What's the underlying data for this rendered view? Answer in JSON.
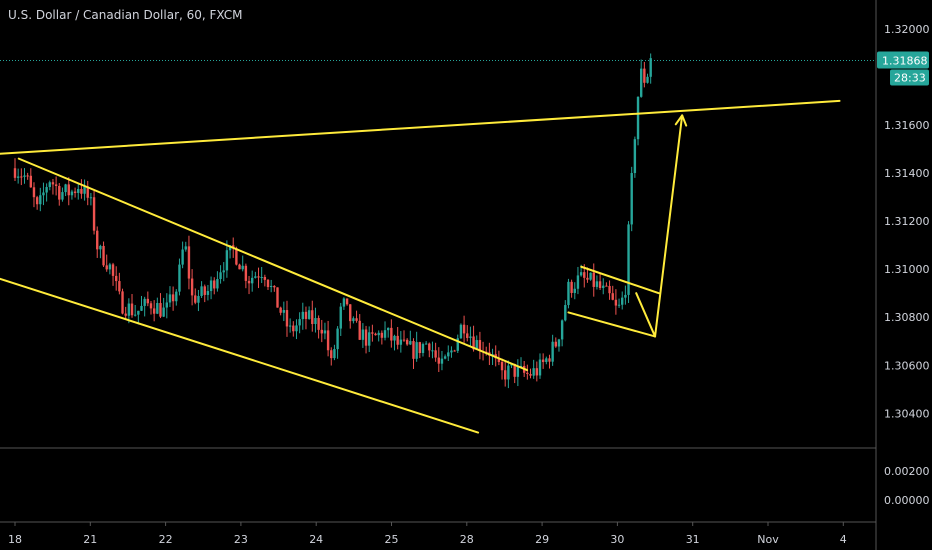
{
  "title": "U.S. Dollar / Canadian Dollar, 60, FXCM",
  "price_tag": "1.31868",
  "countdown_tag": "28:33",
  "colors": {
    "background": "#000000",
    "up": "#26a69a",
    "down": "#ef5350",
    "drawing": "#ffeb3b",
    "axis_text": "#d1d4dc",
    "axis_line": "#555555",
    "price_tag_bg": "#26a69a",
    "price_line": "#26a69a"
  },
  "chart_data": {
    "type": "candlestick",
    "price_axis": {
      "ticks": [
        1.304,
        1.306,
        1.308,
        1.31,
        1.312,
        1.314,
        1.316,
        1.32
      ],
      "tick_labels": [
        "1.30400",
        "1.30600",
        "1.30800",
        "1.31000",
        "1.31200",
        "1.31400",
        "1.31600",
        "1.32000"
      ],
      "range": [
        1.3026,
        1.3212
      ],
      "current_value": 1.31868
    },
    "indicator_axis": {
      "ticks": [
        0.002,
        0
      ],
      "tick_labels": [
        "0.00200",
        "0.00000"
      ],
      "range": [
        -0.0015,
        0.0035
      ]
    },
    "time_axis": {
      "labels": [
        "18",
        "21",
        "22",
        "23",
        "24",
        "25",
        "28",
        "29",
        "30",
        "31",
        "Nov",
        "4"
      ],
      "positions": [
        0,
        1,
        2,
        3,
        4,
        5,
        6,
        7,
        8,
        9,
        10,
        11
      ]
    },
    "anchors": [
      [
        0,
        1.3142
      ],
      [
        0.15,
        1.3138
      ],
      [
        0.3,
        1.3124
      ],
      [
        0.45,
        1.3138
      ],
      [
        0.6,
        1.3132
      ],
      [
        0.75,
        1.3132
      ],
      [
        0.85,
        1.3135
      ],
      [
        1.0,
        1.3128
      ],
      [
        1.1,
        1.3108
      ],
      [
        1.25,
        1.3102
      ],
      [
        1.4,
        1.3086
      ],
      [
        1.6,
        1.3082
      ],
      [
        1.8,
        1.3086
      ],
      [
        2.0,
        1.3082
      ],
      [
        2.15,
        1.3092
      ],
      [
        2.25,
        1.3112
      ],
      [
        2.35,
        1.3088
      ],
      [
        2.55,
        1.309
      ],
      [
        2.75,
        1.3102
      ],
      [
        2.9,
        1.3108
      ],
      [
        3.1,
        1.3096
      ],
      [
        3.3,
        1.31
      ],
      [
        3.45,
        1.3088
      ],
      [
        3.65,
        1.3074
      ],
      [
        3.85,
        1.308
      ],
      [
        4.1,
        1.3076
      ],
      [
        4.2,
        1.306
      ],
      [
        4.35,
        1.3086
      ],
      [
        4.5,
        1.3076
      ],
      [
        4.7,
        1.307
      ],
      [
        4.9,
        1.3074
      ],
      [
        5.1,
        1.3068
      ],
      [
        5.3,
        1.3066
      ],
      [
        5.5,
        1.307
      ],
      [
        5.65,
        1.3058
      ],
      [
        5.8,
        1.3066
      ],
      [
        5.95,
        1.3078
      ],
      [
        6.1,
        1.307
      ],
      [
        6.3,
        1.3066
      ],
      [
        6.45,
        1.3056
      ],
      [
        6.6,
        1.3058
      ],
      [
        6.8,
        1.3056
      ],
      [
        6.95,
        1.3058
      ],
      [
        7.05,
        1.3062
      ],
      [
        7.2,
        1.307
      ],
      [
        7.35,
        1.3092
      ],
      [
        7.5,
        1.3096
      ],
      [
        7.7,
        1.3094
      ],
      [
        7.9,
        1.3088
      ],
      [
        8.0,
        1.3082
      ],
      [
        8.1,
        1.309
      ],
      [
        8.22,
        1.3152
      ],
      [
        8.3,
        1.3182
      ],
      [
        8.38,
        1.3178
      ],
      [
        8.46,
        1.3192
      ]
    ],
    "drawings": [
      {
        "name": "upper-trendline",
        "points": [
          [
            -0.2,
            1.3148
          ],
          [
            10.95,
            1.317
          ]
        ]
      },
      {
        "name": "channel-top",
        "points": [
          [
            0.05,
            1.3146
          ],
          [
            6.8,
            1.3058
          ]
        ]
      },
      {
        "name": "channel-bottom",
        "points": [
          [
            -0.2,
            1.3096
          ],
          [
            6.15,
            1.3032
          ]
        ]
      },
      {
        "name": "flag-top",
        "points": [
          [
            7.52,
            1.3101
          ],
          [
            8.55,
            1.309
          ]
        ]
      },
      {
        "name": "flag-bottom",
        "points": [
          [
            7.35,
            1.3082
          ],
          [
            8.5,
            1.3072
          ]
        ]
      },
      {
        "name": "projection-down",
        "points": [
          [
            8.25,
            1.309
          ],
          [
            8.5,
            1.3072
          ]
        ]
      },
      {
        "name": "projection-up",
        "points": [
          [
            8.5,
            1.3072
          ],
          [
            8.86,
            1.3164
          ]
        ]
      }
    ]
  }
}
